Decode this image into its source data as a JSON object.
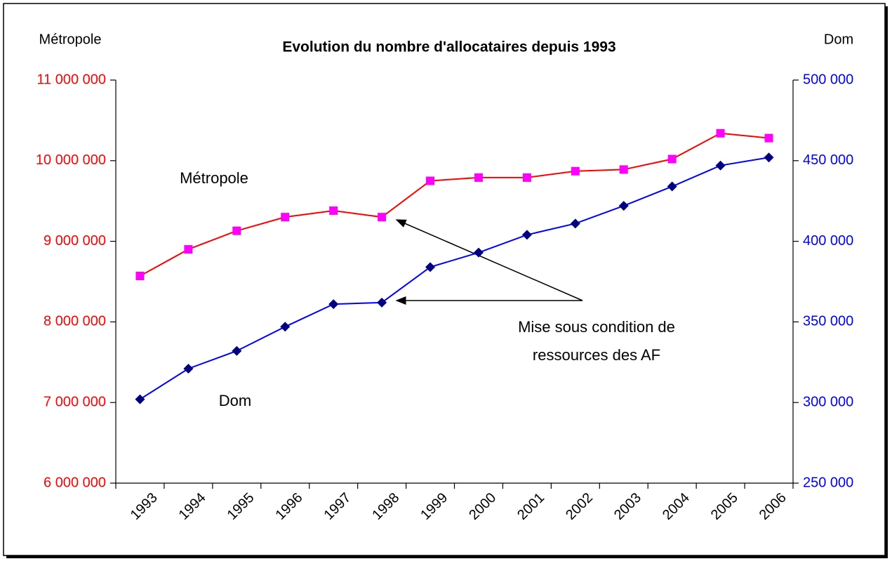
{
  "chart_data": {
    "type": "line",
    "title": "Evolution du nombre d'allocataires depuis 1993",
    "ylabel": "Métropole",
    "y2label": "Dom",
    "categories": [
      "1993",
      "1994",
      "1995",
      "1996",
      "1997",
      "1998",
      "1999",
      "2000",
      "2001",
      "2002",
      "2003",
      "2004",
      "2005",
      "2006"
    ],
    "series": [
      {
        "name": "Métropole",
        "color": "#ff0000",
        "marker_color": "#ff00ff",
        "marker": "square",
        "values": [
          8570000,
          8900000,
          9130000,
          9300000,
          9380000,
          9300000,
          9750000,
          9790000,
          9790000,
          9870000,
          9890000,
          10020000,
          10340000,
          10280000
        ]
      },
      {
        "name": "Dom",
        "color": "#0000ff",
        "marker_color": "#000080",
        "marker": "diamond",
        "axis": "y2",
        "values": [
          302000,
          321000,
          332000,
          347000,
          361000,
          362000,
          384000,
          393000,
          404000,
          411000,
          422000,
          434000,
          447000,
          452000
        ]
      }
    ],
    "ylim": [
      6000000,
      11000000
    ],
    "yticks": [
      {
        "value": 6000000,
        "label": "6 000 000"
      },
      {
        "value": 7000000,
        "label": "7 000 000"
      },
      {
        "value": 8000000,
        "label": "8 000 000"
      },
      {
        "value": 9000000,
        "label": "9 000 000"
      },
      {
        "value": 10000000,
        "label": "10 000 000"
      },
      {
        "value": 11000000,
        "label": "11 000 000"
      }
    ],
    "y2lim": [
      250000,
      500000
    ],
    "y2ticks": [
      {
        "value": 250000,
        "label": "250 000"
      },
      {
        "value": 300000,
        "label": "300 000"
      },
      {
        "value": 350000,
        "label": "350 000"
      },
      {
        "value": 400000,
        "label": "400 000"
      },
      {
        "value": 450000,
        "label": "450 000"
      },
      {
        "value": 500000,
        "label": "500 000"
      }
    ],
    "ytick_color": "#ff0000",
    "y2tick_color": "#0000ff",
    "annotation": [
      "Mise sous condition de",
      "ressources des AF"
    ],
    "grid": false
  }
}
